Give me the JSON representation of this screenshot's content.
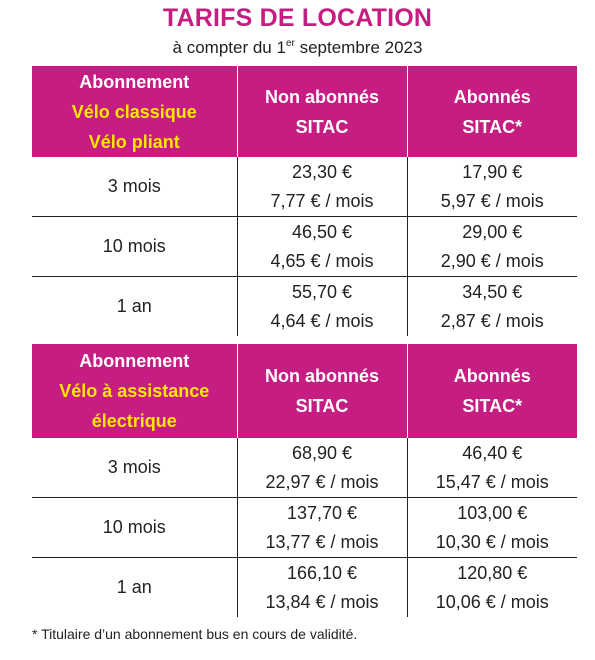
{
  "title": "TARIFS DE LOCATION",
  "subtitle": {
    "before": "à compter du 1",
    "sup": "er",
    "after": " septembre 2023"
  },
  "tables": [
    {
      "header": {
        "col1_line1": "Abonnement",
        "col1_highlight": [
          "Vélo classique",
          "Vélo pliant"
        ],
        "col2": [
          "Non abonnés",
          "SITAC"
        ],
        "col3": [
          "Abonnés",
          "SITAC*"
        ]
      },
      "rows": [
        {
          "duration": "3 mois",
          "non_price": "23,30 €",
          "non_month": "7,77 € / mois",
          "ab_price": "17,90 €",
          "ab_month": "5,97 € / mois"
        },
        {
          "duration": "10 mois",
          "non_price": "46,50 €",
          "non_month": "4,65 € / mois",
          "ab_price": "29,00 €",
          "ab_month": "2,90 € / mois"
        },
        {
          "duration": "1 an",
          "non_price": "55,70 €",
          "non_month": "4,64 € / mois",
          "ab_price": "34,50 €",
          "ab_month": "2,87 € / mois"
        }
      ]
    },
    {
      "header": {
        "col1_line1": "Abonnement",
        "col1_highlight": [
          "Vélo à assistance",
          "électrique"
        ],
        "col2": [
          "Non abonnés",
          "SITAC"
        ],
        "col3": [
          "Abonnés",
          "SITAC*"
        ]
      },
      "rows": [
        {
          "duration": "3 mois",
          "non_price": "68,90 €",
          "non_month": "22,97 € / mois",
          "ab_price": "46,40 €",
          "ab_month": "15,47 € / mois"
        },
        {
          "duration": "10 mois",
          "non_price": "137,70 €",
          "non_month": "13,77 € / mois",
          "ab_price": "103,00 €",
          "ab_month": "10,30 € / mois"
        },
        {
          "duration": "1 an",
          "non_price": "166,10 €",
          "non_month": "13,84 € / mois",
          "ab_price": "120,80 €",
          "ab_month": "10,06 € / mois"
        }
      ]
    }
  ],
  "footnote": "* Titulaire d’un abonnement bus en cours de validité.",
  "colors": {
    "magenta": "#c61d83",
    "yellow": "#ffe600"
  }
}
